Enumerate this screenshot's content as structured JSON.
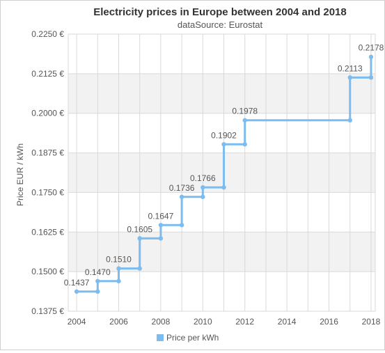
{
  "chart_data": {
    "type": "line",
    "title": "Electricity prices in Europe between 2004 and 2018",
    "subtitle": "dataSource: Eurostat",
    "xlabel": "",
    "ylabel": "Price EUR / kWh",
    "xlim": [
      2003.6,
      2018.2
    ],
    "ylim": [
      0.1375,
      0.225
    ],
    "step": true,
    "grid": true,
    "legend_position": "bottom",
    "x_ticks": [
      "2004",
      "2006",
      "2008",
      "2010",
      "2012",
      "2014",
      "2016",
      "2018"
    ],
    "y_ticks": [
      "0.1375 €",
      "0.1500 €",
      "0.1625 €",
      "0.1750 €",
      "0.1875 €",
      "0.2000 €",
      "0.2125 €",
      "0.2250 €"
    ],
    "series": [
      {
        "name": "Price per kWh",
        "color": "#7cbcef",
        "points": [
          {
            "x": 2004,
            "y": 0.1437
          },
          {
            "x": 2005,
            "y": 0.147
          },
          {
            "x": 2006,
            "y": 0.151
          },
          {
            "x": 2007,
            "y": 0.1605
          },
          {
            "x": 2008,
            "y": 0.1647
          },
          {
            "x": 2009,
            "y": 0.1736
          },
          {
            "x": 2010,
            "y": 0.1766
          },
          {
            "x": 2011,
            "y": 0.1902
          },
          {
            "x": 2012,
            "y": 0.1978
          },
          {
            "x": 2017,
            "y": 0.2113
          },
          {
            "x": 2018,
            "y": 0.2178
          }
        ],
        "labels": [
          "0.1437",
          "0.1470",
          "0.1510",
          "0.1605",
          "0.1647",
          "0.1736",
          "0.1766",
          "0.1902",
          "0.1978",
          "0.2113",
          "0.2178"
        ]
      }
    ]
  },
  "colors": {
    "band": "#f2f2f2",
    "grid": "#d9d9d9",
    "axis_text": "#555555",
    "title": "#333333",
    "label": "#555555"
  }
}
